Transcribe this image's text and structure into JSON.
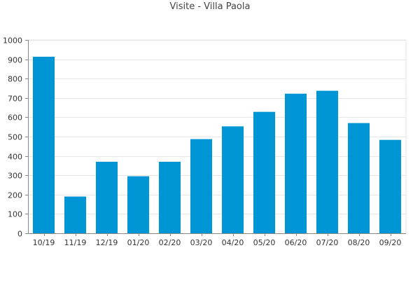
{
  "chart_data": {
    "type": "bar",
    "title": "Visite - Villa Paola",
    "xlabel": "",
    "ylabel": "",
    "categories": [
      "10/19",
      "11/19",
      "12/19",
      "01/20",
      "02/20",
      "03/20",
      "04/20",
      "05/20",
      "06/20",
      "07/20",
      "08/20",
      "09/20"
    ],
    "values": [
      913,
      190,
      370,
      295,
      370,
      487,
      553,
      628,
      722,
      737,
      570,
      483
    ],
    "ylim": [
      0,
      1000
    ],
    "yticks": [
      0,
      100,
      200,
      300,
      400,
      500,
      600,
      700,
      800,
      900,
      1000
    ],
    "grid": true,
    "bar_color": "#0096d6",
    "grid_color": "#e6e6e6",
    "axis_color": "#888888"
  }
}
